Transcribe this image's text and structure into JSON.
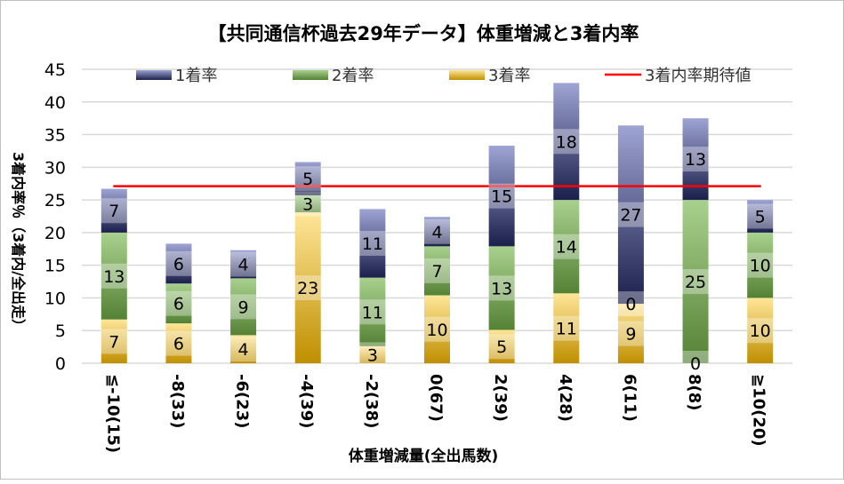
{
  "chart_data": {
    "type": "bar",
    "stacked": true,
    "title": "【共同通信杯過去29年データ】体重増減と3着内率",
    "xlabel": "体重増減量(全出馬数)",
    "ylabel": "3着内率％（3着内/全出走）",
    "ylim": [
      0,
      45
    ],
    "yticks": [
      0,
      5,
      10,
      15,
      20,
      25,
      30,
      35,
      40,
      45
    ],
    "grid": true,
    "legend_position": "top",
    "categories": [
      "≦-10(15)",
      "-8(33)",
      "-6(23)",
      "-4(39)",
      "-2(38)",
      "0(67)",
      "2(39)",
      "4(28)",
      "6(11)",
      "8(8)",
      "≧10(20)"
    ],
    "series": [
      {
        "name": "3着率",
        "values": [
          6.7,
          6.1,
          4.3,
          23.1,
          2.6,
          10.4,
          5.1,
          10.7,
          9.1,
          0,
          10.0
        ],
        "labels": [
          "7",
          "6",
          "4",
          "23",
          "3",
          "10",
          "5",
          "11",
          "9",
          "0",
          "10"
        ],
        "colors": [
          "#ffe699",
          "#bf8f00"
        ]
      },
      {
        "name": "2着率",
        "values": [
          13.3,
          6.1,
          8.7,
          2.6,
          10.5,
          7.5,
          12.8,
          14.3,
          0,
          25.0,
          10.0
        ],
        "labels": [
          "13",
          "6",
          "9",
          "3",
          "11",
          "7",
          "13",
          "14",
          "0",
          "25",
          "10"
        ],
        "colors": [
          "#a9d18e",
          "#548235"
        ]
      },
      {
        "name": "1着率",
        "values": [
          6.7,
          6.1,
          4.3,
          5.1,
          10.5,
          4.5,
          15.4,
          17.9,
          27.3,
          12.5,
          5.0
        ],
        "labels": [
          "7",
          "6",
          "4",
          "5",
          "11",
          "4",
          "15",
          "18",
          "27",
          "13",
          "5"
        ],
        "colors": [
          "#9ea4d3",
          "#1b1f4b"
        ]
      }
    ],
    "reference_line": {
      "name": "3着内率期待値",
      "value": 27.1,
      "color": "#ff0000"
    }
  }
}
